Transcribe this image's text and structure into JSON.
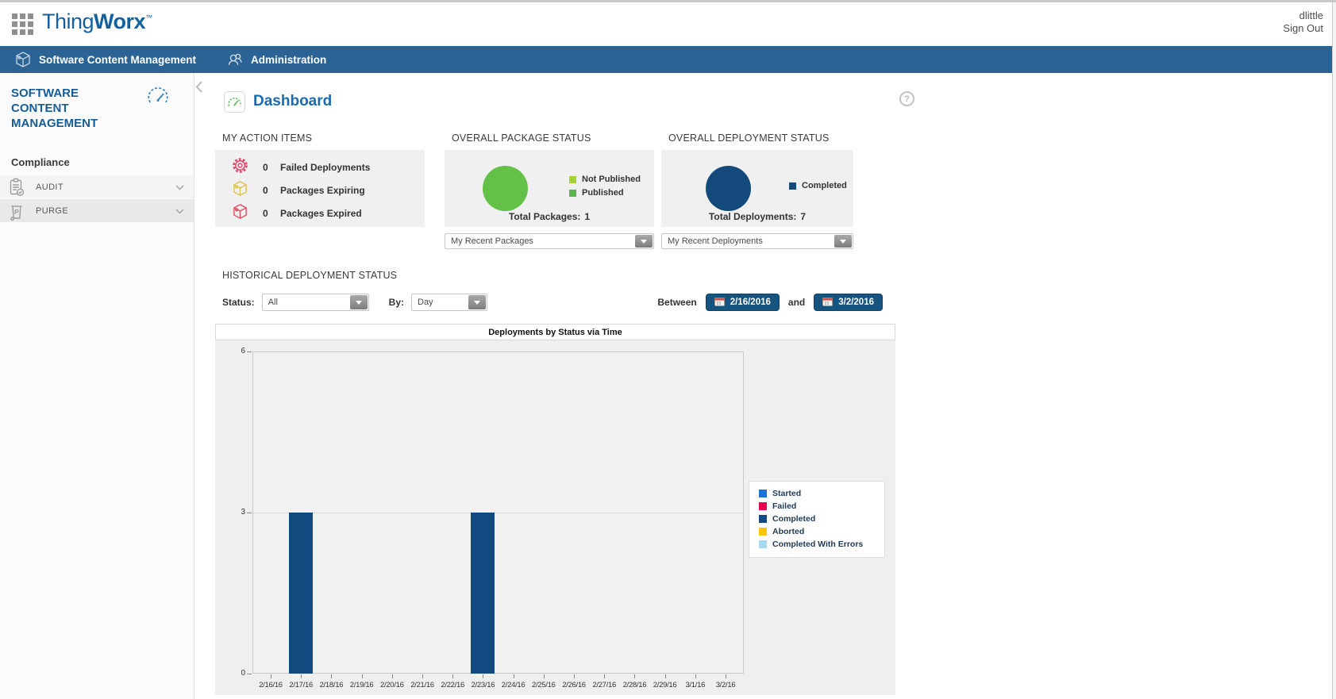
{
  "header": {
    "logo": {
      "part1": "Thing",
      "part2": "Worx",
      "tm": "™"
    },
    "username": "dlittle",
    "sign_out_label": "Sign Out"
  },
  "nav": {
    "scm_label": "Software Content Management",
    "admin_label": "Administration"
  },
  "sidebar": {
    "title": "SOFTWARE CONTENT MANAGEMENT",
    "section_label": "Compliance",
    "items": [
      {
        "label": "AUDIT"
      },
      {
        "label": "PURGE"
      }
    ]
  },
  "main": {
    "page_title": "Dashboard",
    "action_items": {
      "header": "MY ACTION ITEMS",
      "items": [
        {
          "icon": "gear-icon",
          "color": "#e04a6b",
          "count": "0",
          "label": "Failed Deployments"
        },
        {
          "icon": "package-icon",
          "color": "#dfc24f",
          "count": "0",
          "label": "Packages Expiring"
        },
        {
          "icon": "package-icon",
          "color": "#e05163",
          "count": "0",
          "label": "Packages Expired"
        }
      ]
    },
    "package_status": {
      "header": "OVERALL PACKAGE STATUS",
      "pie_color": "#64c147",
      "legend": [
        {
          "label": "Not Published",
          "color": "#a4d233"
        },
        {
          "label": "Published",
          "color": "#57b847"
        }
      ],
      "total_label": "Total Packages:",
      "total_value": "1",
      "dropdown_label": "My Recent Packages"
    },
    "deployment_status": {
      "header": "OVERALL DEPLOYMENT STATUS",
      "pie_color": "#14497c",
      "legend": [
        {
          "label": "Completed",
          "color": "#14497c"
        }
      ],
      "total_label": "Total Deployments:",
      "total_value": "7",
      "dropdown_label": "My Recent Deployments"
    },
    "historical": {
      "header": "HISTORICAL DEPLOYMENT STATUS",
      "status_label": "Status:",
      "status_value": "All",
      "by_label": "By:",
      "by_value": "Day",
      "between_label": "Between",
      "and_label": "and",
      "start_date": "2/16/2016",
      "end_date": "3/2/2016"
    }
  },
  "chart_data": {
    "type": "bar",
    "title": "Deployments by Status via Time",
    "categories": [
      "2/16/16",
      "2/17/16",
      "2/18/16",
      "2/19/16",
      "2/20/16",
      "2/21/16",
      "2/22/16",
      "2/23/16",
      "2/24/16",
      "2/25/16",
      "2/26/16",
      "2/27/16",
      "2/28/16",
      "2/29/16",
      "3/1/16",
      "3/2/16"
    ],
    "series": [
      {
        "name": "Started",
        "color": "#1b74d4",
        "values": [
          0,
          0,
          0,
          0,
          0,
          0,
          0,
          0,
          0,
          0,
          0,
          0,
          0,
          0,
          0,
          0
        ]
      },
      {
        "name": "Failed",
        "color": "#e8004f",
        "values": [
          0,
          0,
          0,
          0,
          0,
          0,
          0,
          0,
          0,
          0,
          0,
          0,
          0,
          0,
          0,
          0
        ]
      },
      {
        "name": "Completed",
        "color": "#114a7e",
        "values": [
          0,
          3,
          0,
          0,
          0,
          0,
          0,
          3,
          0,
          0,
          0,
          0,
          0,
          0,
          0,
          0
        ]
      },
      {
        "name": "Aborted",
        "color": "#ffc50b",
        "values": [
          0,
          0,
          0,
          0,
          0,
          0,
          0,
          0,
          0,
          0,
          0,
          0,
          0,
          0,
          0,
          0
        ]
      },
      {
        "name": "Completed With Errors",
        "color": "#a6d8f0",
        "values": [
          0,
          0,
          0,
          0,
          0,
          0,
          0,
          0,
          0,
          0,
          0,
          0,
          0,
          0,
          0,
          0
        ]
      }
    ],
    "xlabel": "",
    "ylabel": "",
    "ylim": [
      0,
      6
    ],
    "yticks": [
      0,
      3,
      6
    ],
    "grid": "horizontal",
    "legend_position": "right"
  }
}
